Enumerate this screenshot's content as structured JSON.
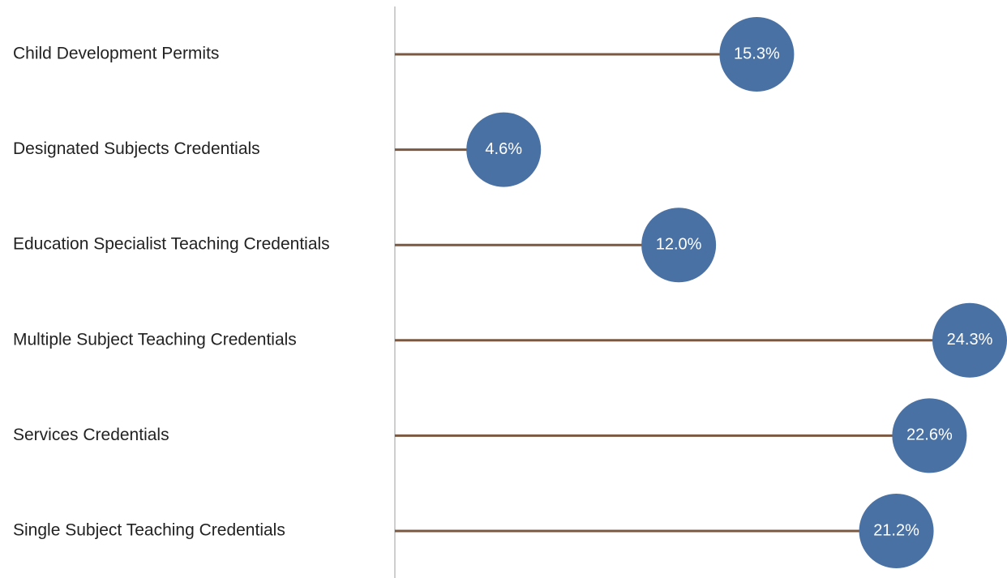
{
  "chart_data": {
    "type": "lollipop",
    "categories": [
      "Child Development Permits",
      "Designated Subjects Credentials",
      "Education Specialist Teaching Credentials",
      "Multiple Subject Teaching Credentials",
      "Services Credentials",
      "Single Subject Teaching Credentials"
    ],
    "values": [
      15.3,
      4.6,
      12.0,
      24.3,
      22.6,
      21.2
    ],
    "value_labels": [
      "15.3%",
      "4.6%",
      "12.0%",
      "24.3%",
      "22.6%",
      "21.2%"
    ],
    "color": "#4a71a3",
    "stem_color": "#7b5841"
  }
}
